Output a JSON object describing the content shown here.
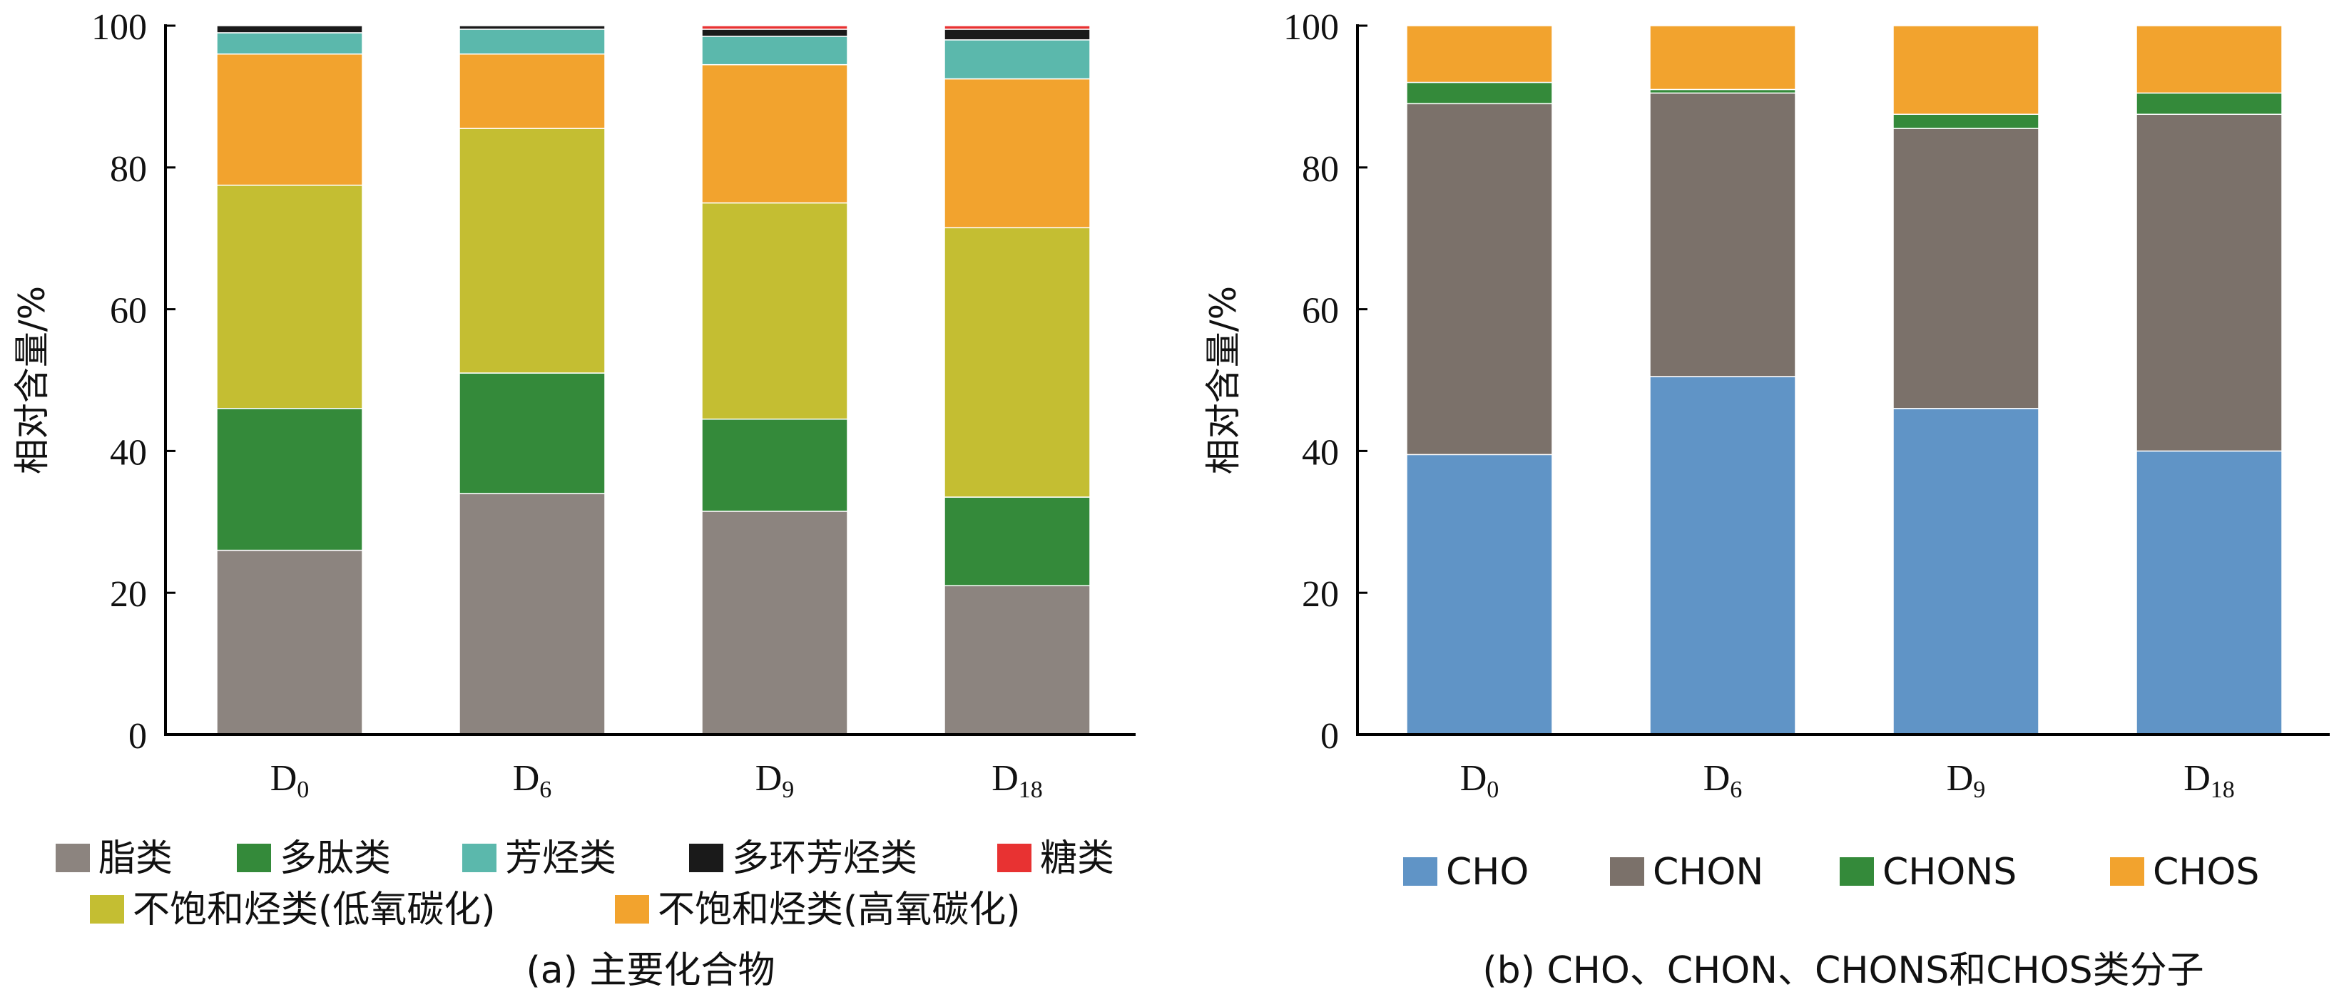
{
  "chart_data": [
    {
      "type": "bar",
      "stacked": true,
      "caption": "(a) 主要化合物",
      "ylabel": "相对含量/%",
      "ylim": [
        0,
        100
      ],
      "yticks": [
        "0",
        "20",
        "40",
        "60",
        "80",
        "100"
      ],
      "categories": [
        {
          "base": "D",
          "sub": "0"
        },
        {
          "base": "D",
          "sub": "6"
        },
        {
          "base": "D",
          "sub": "9"
        },
        {
          "base": "D",
          "sub": "18"
        }
      ],
      "series": [
        {
          "name": "脂类",
          "color": "#8c847f",
          "values": [
            26,
            34,
            31.5,
            21
          ]
        },
        {
          "name": "多肽类",
          "color": "#348a3a",
          "values": [
            20,
            17,
            13,
            12.5
          ]
        },
        {
          "name": "不饱和烃类(低氧碳化)",
          "color": "#c4be32",
          "values": [
            31.5,
            34.5,
            30.5,
            38
          ]
        },
        {
          "name": "不饱和烃类(高氧碳化)",
          "color": "#f2a32e",
          "values": [
            18.5,
            10.5,
            19.5,
            21
          ]
        },
        {
          "name": "芳烃类",
          "color": "#5bb8ac",
          "values": [
            3,
            3.5,
            4,
            5.5
          ]
        },
        {
          "name": "多环芳烃类",
          "color": "#1a1a1a",
          "values": [
            1,
            0.5,
            1,
            1.5
          ]
        },
        {
          "name": "糖类",
          "color": "#e83232",
          "values": [
            0,
            0,
            0.5,
            0.5
          ]
        }
      ],
      "legend_rows": [
        [
          "脂类",
          "多肽类",
          "芳烃类",
          "多环芳烃类",
          "糖类"
        ],
        [
          "不饱和烃类(低氧碳化)",
          "不饱和烃类(高氧碳化)"
        ]
      ]
    },
    {
      "type": "bar",
      "stacked": true,
      "caption": "(b) CHO、CHON、CHONS和CHOS类分子",
      "ylabel": "相对含量/%",
      "ylim": [
        0,
        100
      ],
      "yticks": [
        "0",
        "20",
        "40",
        "60",
        "80",
        "100"
      ],
      "categories": [
        {
          "base": "D",
          "sub": "0"
        },
        {
          "base": "D",
          "sub": "6"
        },
        {
          "base": "D",
          "sub": "9"
        },
        {
          "base": "D",
          "sub": "18"
        }
      ],
      "series": [
        {
          "name": "CHO",
          "color": "#6094c6",
          "values": [
            39.5,
            50.5,
            46,
            40
          ]
        },
        {
          "name": "CHON",
          "color": "#7b716a",
          "values": [
            49.5,
            40,
            39.5,
            47.5
          ]
        },
        {
          "name": "CHONS",
          "color": "#348a3a",
          "values": [
            3,
            0.5,
            2,
            3
          ]
        },
        {
          "name": "CHOS",
          "color": "#f2a32e",
          "values": [
            8,
            9,
            12.5,
            9.5
          ]
        }
      ],
      "legend_rows": [
        [
          "CHO",
          "CHON",
          "CHONS",
          "CHOS"
        ]
      ]
    }
  ]
}
